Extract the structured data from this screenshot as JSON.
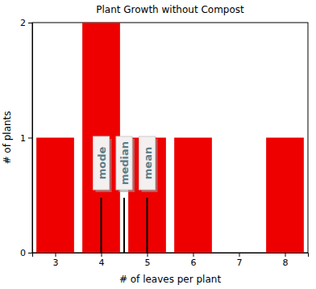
{
  "chart_data": {
    "type": "bar",
    "title": "Plant Growth without Compost",
    "x_label": "# of leaves per plant",
    "y_label": "# of plants",
    "x": [
      3,
      4,
      5,
      6,
      7,
      8
    ],
    "values": [
      1,
      2,
      1,
      1,
      0,
      1
    ],
    "color": "#ee0000",
    "xlim": [
      2.5,
      8.5
    ],
    "xticks": [
      3,
      4,
      5,
      6,
      7,
      8
    ],
    "ylim": [
      0,
      2
    ],
    "yticks": [
      0,
      1,
      2
    ],
    "grid": false,
    "annotations": [
      {
        "text": "mode",
        "x": 4
      },
      {
        "text": "median",
        "x": 4.5
      },
      {
        "text": "mean",
        "x": 5
      }
    ]
  }
}
